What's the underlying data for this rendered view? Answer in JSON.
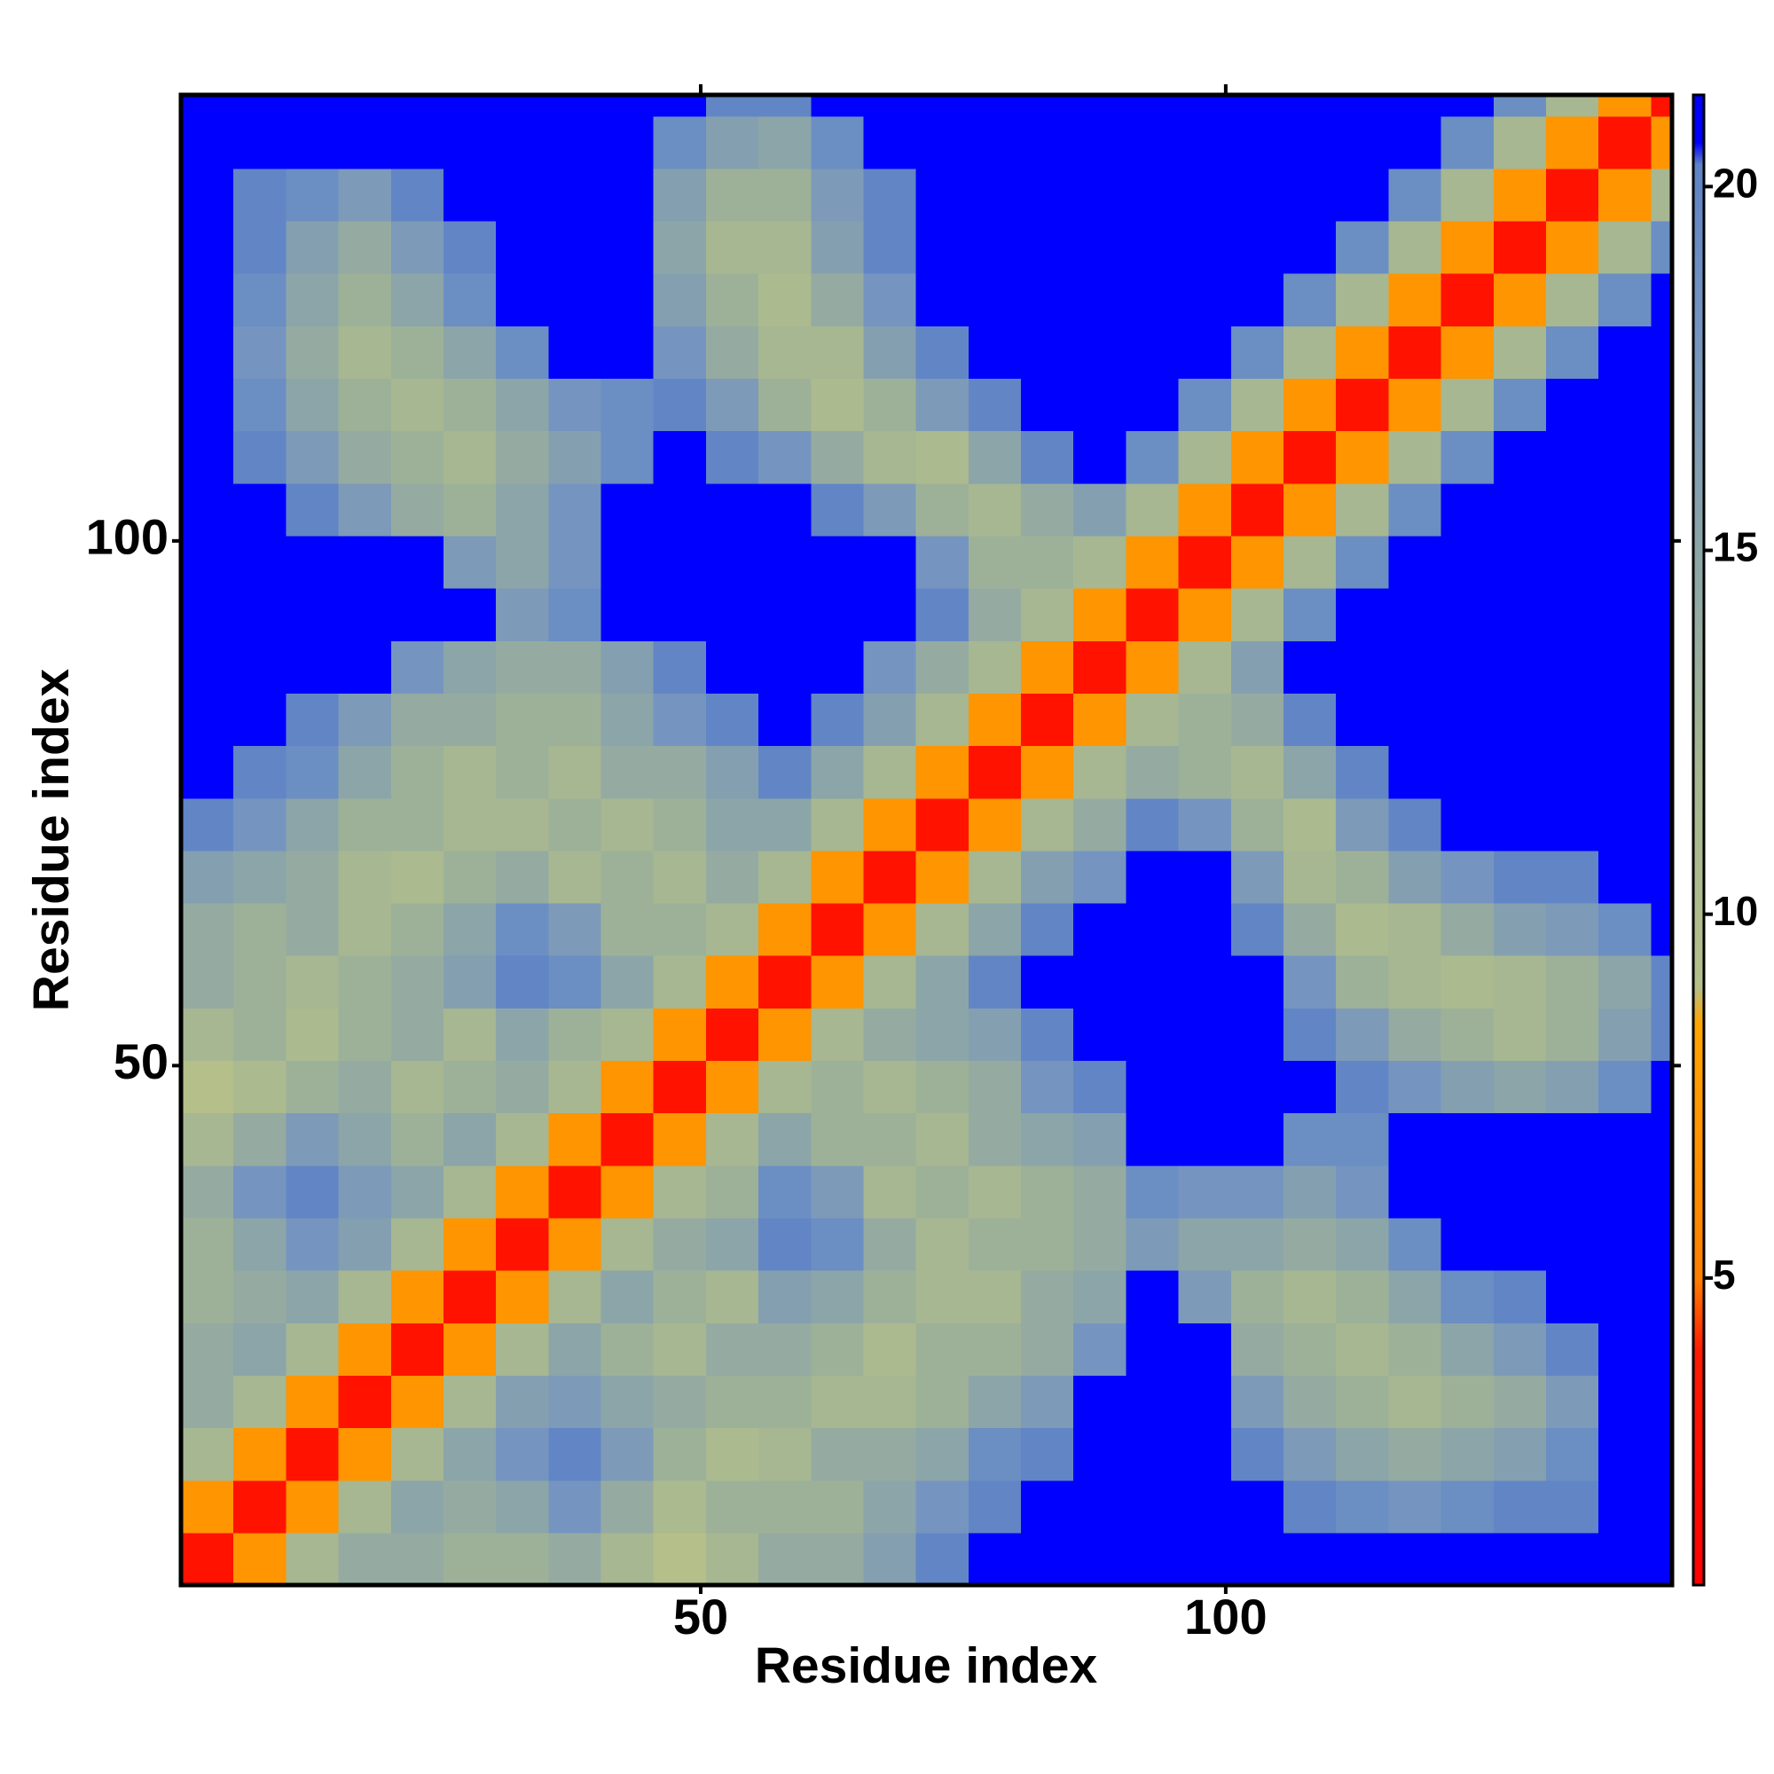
{
  "chart_data": {
    "type": "heatmap",
    "xlabel": "Residue index",
    "ylabel": "Residue index",
    "x": [
      3,
      8,
      13,
      18,
      23,
      28,
      33,
      38,
      43,
      48,
      53,
      58,
      63,
      68,
      73,
      78,
      83,
      88,
      93,
      98,
      103,
      108,
      113,
      118,
      123,
      128,
      133,
      138,
      143
    ],
    "y": [
      3,
      8,
      13,
      18,
      23,
      28,
      33,
      38,
      43,
      48,
      53,
      58,
      63,
      68,
      73,
      78,
      83,
      88,
      93,
      98,
      103,
      108,
      113,
      118,
      123,
      128,
      133,
      138,
      143
    ],
    "xlim": [
      0.5,
      142.5
    ],
    "ylim": [
      0.5,
      142.5
    ],
    "xticks": [
      50,
      100
    ],
    "yticks": [
      50,
      100
    ],
    "colorbar_lim": [
      0.78,
      21.26
    ],
    "colorbar_ticks": [
      5,
      10,
      15,
      20
    ],
    "colorscale": [
      [
        0.78,
        "#ff0000"
      ],
      [
        4,
        "#ff1a00"
      ],
      [
        5,
        "#ff7f00"
      ],
      [
        8.5,
        "#ffa500"
      ],
      [
        9,
        "#b4bf8a"
      ],
      [
        12,
        "#a6b792"
      ],
      [
        15,
        "#8ca5a8"
      ],
      [
        18,
        "#7595c0"
      ],
      [
        20.3,
        "#5f84c6"
      ],
      [
        20.6,
        "#0000ff"
      ],
      [
        21.26,
        "#0000ff"
      ]
    ],
    "values": [
      [
        3,
        7,
        12,
        14,
        14,
        13,
        13,
        14,
        12,
        9,
        12,
        14,
        14,
        16,
        20,
        21,
        21,
        21,
        21,
        21,
        21,
        21,
        21,
        21,
        21,
        21,
        21,
        21,
        21
      ],
      [
        7,
        3,
        7,
        12,
        15,
        14,
        15,
        18,
        14,
        11,
        13,
        13,
        13,
        15,
        18,
        20,
        21,
        21,
        21,
        21,
        21,
        20,
        19,
        18,
        19,
        20,
        20,
        21,
        21
      ],
      [
        12,
        7,
        3,
        7,
        12,
        15,
        18,
        20,
        17,
        13,
        11,
        12,
        14,
        14,
        15,
        19,
        20,
        21,
        21,
        21,
        20,
        17,
        15,
        14,
        15,
        16,
        19,
        21,
        21
      ],
      [
        14,
        12,
        7,
        3,
        7,
        12,
        16,
        17,
        15,
        14,
        13,
        13,
        12,
        12,
        13,
        15,
        17,
        21,
        21,
        21,
        17,
        14,
        13,
        12,
        13,
        14,
        17,
        21,
        21
      ],
      [
        14,
        15,
        12,
        7,
        3,
        7,
        12,
        15,
        13,
        12,
        14,
        14,
        13,
        11,
        13,
        13,
        14,
        18,
        21,
        21,
        14,
        13,
        12,
        13,
        15,
        17,
        20,
        21,
        21
      ],
      [
        13,
        14,
        15,
        12,
        7,
        3,
        7,
        12,
        15,
        13,
        12,
        16,
        15,
        13,
        12,
        12,
        14,
        15,
        21,
        17,
        13,
        12,
        13,
        15,
        19,
        20,
        21,
        21,
        21
      ],
      [
        13,
        15,
        18,
        16,
        12,
        7,
        3,
        7,
        12,
        14,
        15,
        20,
        19,
        14,
        12,
        13,
        13,
        14,
        17,
        15,
        15,
        14,
        15,
        19,
        21,
        21,
        21,
        21,
        21
      ],
      [
        14,
        18,
        20,
        17,
        15,
        12,
        7,
        3,
        7,
        12,
        13,
        19,
        17,
        12,
        13,
        12,
        13,
        14,
        19,
        18,
        18,
        16,
        18,
        21,
        21,
        21,
        21,
        21,
        21
      ],
      [
        12,
        14,
        17,
        15,
        13,
        15,
        12,
        7,
        3,
        7,
        12,
        15,
        13,
        13,
        12,
        14,
        15,
        16,
        21,
        21,
        21,
        19,
        19,
        21,
        21,
        21,
        21,
        21,
        21
      ],
      [
        9,
        11,
        13,
        14,
        12,
        13,
        14,
        12,
        7,
        3,
        7,
        12,
        13,
        12,
        13,
        14,
        18,
        20,
        21,
        21,
        21,
        21,
        20,
        18,
        16,
        15,
        16,
        19,
        21
      ],
      [
        12,
        13,
        11,
        13,
        14,
        12,
        15,
        13,
        12,
        7,
        3,
        7,
        12,
        14,
        15,
        16,
        20,
        21,
        21,
        21,
        21,
        20,
        17,
        14,
        13,
        12,
        13,
        16,
        20
      ],
      [
        14,
        13,
        12,
        13,
        14,
        16,
        20,
        19,
        15,
        12,
        7,
        3,
        7,
        12,
        15,
        20,
        21,
        21,
        21,
        21,
        21,
        18,
        13,
        12,
        11,
        12,
        13,
        15,
        20
      ],
      [
        14,
        13,
        14,
        12,
        13,
        15,
        19,
        17,
        13,
        13,
        12,
        7,
        3,
        7,
        12,
        15,
        20,
        21,
        21,
        21,
        20,
        14,
        11,
        12,
        14,
        16,
        17,
        19,
        21
      ],
      [
        16,
        15,
        14,
        12,
        11,
        13,
        14,
        12,
        13,
        12,
        14,
        12,
        7,
        3,
        7,
        12,
        16,
        18,
        21,
        21,
        17,
        12,
        13,
        16,
        18,
        20,
        20,
        21,
        21
      ],
      [
        20,
        18,
        15,
        13,
        13,
        12,
        12,
        13,
        12,
        13,
        15,
        15,
        12,
        7,
        3,
        7,
        12,
        14,
        20,
        18,
        13,
        11,
        17,
        20,
        21,
        21,
        21,
        21,
        21
      ],
      [
        21,
        20,
        19,
        15,
        13,
        12,
        13,
        12,
        14,
        14,
        16,
        20,
        15,
        12,
        7,
        3,
        7,
        12,
        14,
        13,
        12,
        15,
        20,
        21,
        21,
        21,
        21,
        21,
        21
      ],
      [
        21,
        21,
        20,
        17,
        14,
        14,
        13,
        13,
        15,
        18,
        20,
        21,
        20,
        16,
        12,
        7,
        3,
        7,
        12,
        13,
        14,
        20,
        21,
        21,
        21,
        21,
        21,
        21,
        21
      ],
      [
        21,
        21,
        21,
        21,
        18,
        15,
        14,
        14,
        16,
        20,
        21,
        21,
        21,
        18,
        14,
        12,
        7,
        3,
        7,
        12,
        16,
        21,
        21,
        21,
        21,
        21,
        21,
        21,
        21
      ],
      [
        21,
        21,
        21,
        21,
        21,
        21,
        17,
        19,
        21,
        21,
        21,
        21,
        21,
        21,
        20,
        14,
        12,
        7,
        3,
        7,
        12,
        19,
        21,
        21,
        21,
        21,
        21,
        21,
        21
      ],
      [
        21,
        21,
        21,
        21,
        21,
        17,
        15,
        18,
        21,
        21,
        21,
        21,
        21,
        21,
        18,
        13,
        13,
        12,
        7,
        3,
        7,
        12,
        19,
        21,
        21,
        21,
        21,
        21,
        21
      ],
      [
        21,
        21,
        20,
        17,
        14,
        13,
        15,
        18,
        21,
        21,
        21,
        21,
        20,
        17,
        13,
        12,
        14,
        16,
        12,
        7,
        3,
        7,
        12,
        19,
        21,
        21,
        21,
        21,
        21
      ],
      [
        21,
        20,
        17,
        14,
        13,
        12,
        14,
        16,
        19,
        21,
        20,
        18,
        14,
        12,
        11,
        15,
        20,
        21,
        19,
        12,
        7,
        3,
        7,
        12,
        19,
        21,
        21,
        21,
        21
      ],
      [
        21,
        19,
        15,
        13,
        12,
        13,
        15,
        18,
        19,
        20,
        17,
        13,
        11,
        13,
        17,
        20,
        21,
        21,
        21,
        19,
        12,
        7,
        3,
        7,
        12,
        19,
        21,
        21,
        21
      ],
      [
        21,
        18,
        14,
        12,
        13,
        15,
        19,
        21,
        21,
        18,
        14,
        12,
        12,
        16,
        20,
        21,
        21,
        21,
        21,
        21,
        19,
        12,
        7,
        3,
        7,
        12,
        19,
        21,
        21
      ],
      [
        21,
        19,
        15,
        13,
        15,
        19,
        21,
        21,
        21,
        16,
        13,
        11,
        14,
        18,
        21,
        21,
        21,
        21,
        21,
        21,
        21,
        19,
        12,
        7,
        3,
        7,
        12,
        19,
        21
      ],
      [
        21,
        20,
        16,
        14,
        17,
        20,
        21,
        21,
        21,
        15,
        12,
        12,
        16,
        20,
        21,
        21,
        21,
        21,
        21,
        21,
        21,
        21,
        19,
        12,
        7,
        3,
        7,
        12,
        19
      ],
      [
        21,
        20,
        19,
        17,
        20,
        21,
        21,
        21,
        21,
        16,
        13,
        13,
        17,
        20,
        21,
        21,
        21,
        21,
        21,
        21,
        21,
        21,
        21,
        19,
        12,
        7,
        3,
        7,
        12
      ],
      [
        21,
        21,
        21,
        21,
        21,
        21,
        21,
        21,
        21,
        19,
        16,
        15,
        19,
        21,
        21,
        21,
        21,
        21,
        21,
        21,
        21,
        21,
        21,
        21,
        19,
        12,
        7,
        3,
        7
      ],
      [
        21,
        21,
        21,
        21,
        21,
        21,
        21,
        21,
        21,
        21,
        20,
        20,
        21,
        21,
        21,
        21,
        21,
        21,
        21,
        21,
        21,
        21,
        21,
        21,
        21,
        19,
        12,
        7,
        3
      ]
    ]
  }
}
